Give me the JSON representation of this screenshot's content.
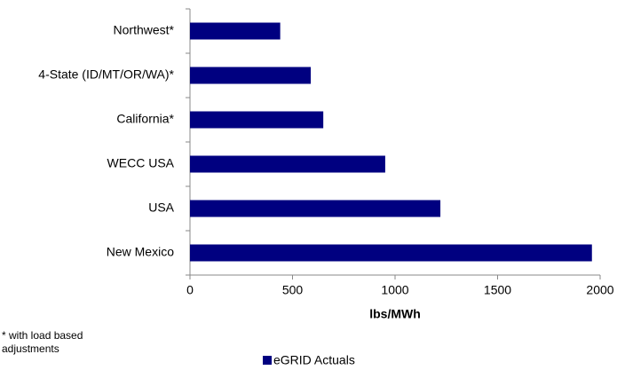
{
  "chart_data": {
    "type": "hbar",
    "categories": [
      "Northwest*",
      "4-State (ID/MT/OR/WA)*",
      "California*",
      "WECC USA",
      "USA",
      "New Mexico"
    ],
    "series": [
      {
        "name": "eGRID Actuals",
        "color": "#000080",
        "values": [
          440,
          589,
          650,
          952,
          1221,
          1960
        ]
      }
    ],
    "xlim": [
      0,
      2000
    ],
    "xticks": [
      0,
      500,
      1000,
      1500,
      2000
    ],
    "xlabel": "lbs/MWh",
    "footnote": "* with load based adjustments",
    "legend": "bottom",
    "grid": false
  }
}
